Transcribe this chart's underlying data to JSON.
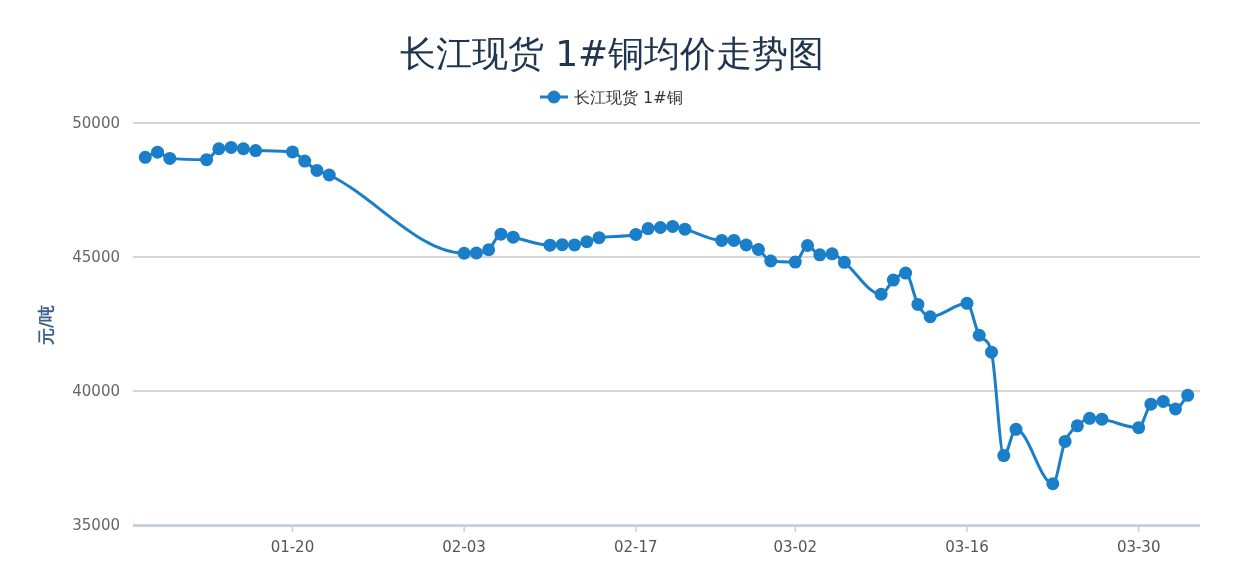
{
  "chart_data": {
    "type": "line",
    "title": "长江现货 1#铜均价走势图",
    "ylabel": "元/吨",
    "legend": "top",
    "grid": "y",
    "marker": "circle",
    "line_style": "solid",
    "x": [
      "--01-08",
      "--01-09",
      "--01-10",
      "--01-13",
      "--01-14",
      "--01-15",
      "--01-16",
      "--01-17",
      "--01-20",
      "--01-21",
      "--01-22",
      "--01-23",
      "--02-03",
      "--02-04",
      "--02-05",
      "--02-06",
      "--02-07",
      "--02-10",
      "--02-11",
      "--02-12",
      "--02-13",
      "--02-14",
      "--02-17",
      "--02-18",
      "--02-19",
      "--02-20",
      "--02-21",
      "--02-24",
      "--02-25",
      "--02-26",
      "--02-27",
      "--02-28",
      "--03-02",
      "--03-03",
      "--03-04",
      "--03-05",
      "--03-06",
      "--03-09",
      "--03-10",
      "--03-11",
      "--03-12",
      "--03-13",
      "--03-16",
      "--03-17",
      "--03-18",
      "--03-19",
      "--03-20",
      "--03-23",
      "--03-24",
      "--03-25",
      "--03-26",
      "--03-27",
      "--03-30",
      "--03-31",
      "--04-01",
      "--04-02",
      "--04-03"
    ],
    "series": [
      {
        "name": "长江现货 1#铜",
        "color": "#1a7fc8",
        "values": [
          48720,
          48910,
          48680,
          48630,
          49040,
          49090,
          49040,
          48970,
          48920,
          48580,
          48230,
          48060,
          45140,
          45150,
          45270,
          45850,
          45740,
          45440,
          45460,
          45450,
          45570,
          45720,
          45840,
          46060,
          46100,
          46140,
          46040,
          45620,
          45620,
          45450,
          45280,
          44850,
          44810,
          45430,
          45080,
          45120,
          44800,
          43610,
          44140,
          44400,
          43230,
          42770,
          43270,
          42080,
          41450,
          37590,
          38570,
          36540,
          38120,
          38700,
          38980,
          38950,
          38630,
          39510,
          39610,
          39330,
          39840
        ]
      }
    ],
    "xlim": [
      "--01-07",
      "--04-04"
    ],
    "xticks": [
      {
        "value": "--01-20",
        "label": "01-20"
      },
      {
        "value": "--02-03",
        "label": "02-03"
      },
      {
        "value": "--02-17",
        "label": "02-17"
      },
      {
        "value": "--03-02",
        "label": "03-02"
      },
      {
        "value": "--03-16",
        "label": "03-16"
      },
      {
        "value": "--03-30",
        "label": "03-30"
      }
    ],
    "ylim": [
      35000,
      50000
    ],
    "yticks": [
      35000,
      40000,
      45000,
      50000
    ]
  }
}
